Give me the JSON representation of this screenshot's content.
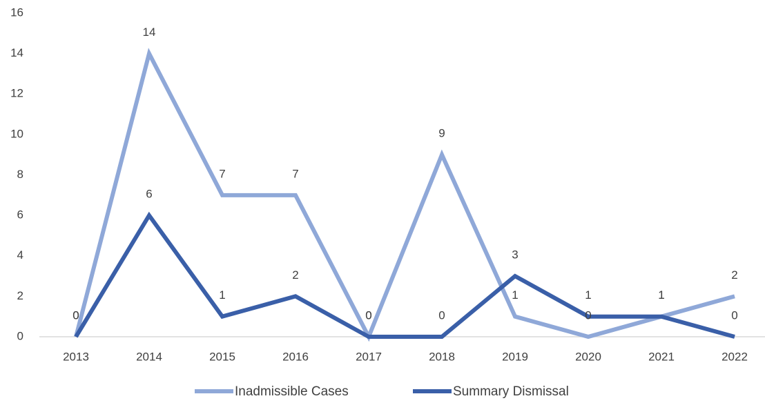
{
  "chart_data": {
    "type": "line",
    "categories": [
      "2013",
      "2014",
      "2015",
      "2016",
      "2017",
      "2018",
      "2019",
      "2020",
      "2021",
      "2022"
    ],
    "series": [
      {
        "name": "Inadmissible Cases",
        "color": "#8fa8d8",
        "values": [
          0,
          14,
          7,
          7,
          0,
          9,
          1,
          0,
          1,
          2
        ]
      },
      {
        "name": "Summary Dismissal",
        "color": "#3a5fa8",
        "values": [
          0,
          6,
          1,
          2,
          0,
          0,
          3,
          1,
          1,
          0
        ]
      }
    ],
    "ylim": [
      0,
      16
    ],
    "yticks": [
      0,
      2,
      4,
      6,
      8,
      10,
      12,
      14,
      16
    ],
    "grid": false,
    "data_labels": true,
    "legend": "bottom"
  }
}
